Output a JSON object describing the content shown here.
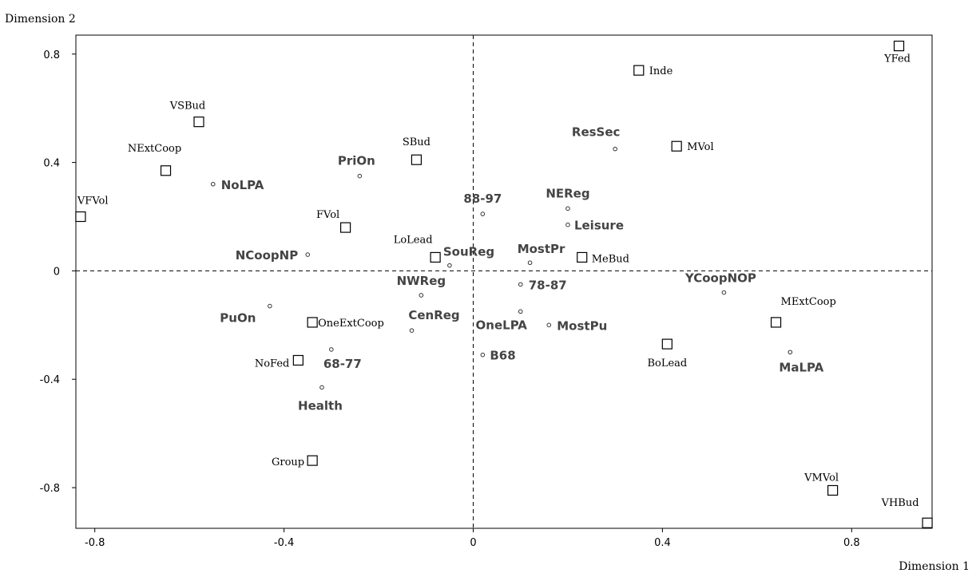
{
  "chart_data": {
    "type": "scatter",
    "xlabel": "Dimension 1",
    "ylabel": "Dimension 2",
    "xlim": [
      -0.84,
      0.97
    ],
    "ylim": [
      -0.95,
      0.87
    ],
    "xticks": [
      {
        "value": -0.8,
        "label": "-0.8"
      },
      {
        "value": -0.4,
        "label": "-0.4"
      },
      {
        "value": 0,
        "label": "0"
      },
      {
        "value": 0.4,
        "label": "0.4"
      },
      {
        "value": 0.8,
        "label": "0.8"
      }
    ],
    "yticks": [
      {
        "value": 0.8,
        "label": "0.8"
      },
      {
        "value": 0.4,
        "label": "0.4"
      },
      {
        "value": 0,
        "label": "0"
      },
      {
        "value": -0.4,
        "label": "-0.4"
      },
      {
        "value": -0.8,
        "label": "-0.8"
      }
    ],
    "reference_lines": {
      "x": 0,
      "y": 0,
      "style": "dashed"
    },
    "grid": false,
    "series": [
      {
        "marker": "square",
        "label_style": "serif",
        "points": [
          {
            "label": "YFed",
            "x": 0.9,
            "y": 0.83
          },
          {
            "label": "Inde",
            "x": 0.35,
            "y": 0.74
          },
          {
            "label": "MVol",
            "x": 0.43,
            "y": 0.46
          },
          {
            "label": "VSBud",
            "x": -0.58,
            "y": 0.55
          },
          {
            "label": "NExtCoop",
            "x": -0.65,
            "y": 0.37
          },
          {
            "label": "SBud",
            "x": -0.12,
            "y": 0.41
          },
          {
            "label": "VFVol",
            "x": -0.83,
            "y": 0.2
          },
          {
            "label": "FVol",
            "x": -0.27,
            "y": 0.16
          },
          {
            "label": "LoLead",
            "x": -0.08,
            "y": 0.05
          },
          {
            "label": "MeBud",
            "x": 0.23,
            "y": 0.05
          },
          {
            "label": "OneExtCoop",
            "x": -0.34,
            "y": -0.19
          },
          {
            "label": "NoFed",
            "x": -0.37,
            "y": -0.33
          },
          {
            "label": "MExtCoop",
            "x": 0.64,
            "y": -0.19
          },
          {
            "label": "BoLead",
            "x": 0.41,
            "y": -0.27
          },
          {
            "label": "Group",
            "x": -0.34,
            "y": -0.7
          },
          {
            "label": "VMVol",
            "x": 0.76,
            "y": -0.81
          },
          {
            "label": "VHBud",
            "x": 0.96,
            "y": -0.93
          }
        ]
      },
      {
        "marker": "circle",
        "label_style": "bold",
        "points": [
          {
            "label": "ResSec",
            "x": 0.3,
            "y": 0.45
          },
          {
            "label": "NoLPA",
            "x": -0.55,
            "y": 0.32
          },
          {
            "label": "PriOn",
            "x": -0.24,
            "y": 0.35
          },
          {
            "label": "88-97",
            "x": 0.02,
            "y": 0.21
          },
          {
            "label": "NEReg",
            "x": 0.2,
            "y": 0.23
          },
          {
            "label": "Leisure",
            "x": 0.2,
            "y": 0.17
          },
          {
            "label": "NCoopNP",
            "x": -0.35,
            "y": 0.06
          },
          {
            "label": "SouReg",
            "x": -0.05,
            "y": 0.02
          },
          {
            "label": "MostPr",
            "x": 0.12,
            "y": 0.03
          },
          {
            "label": "NWReg",
            "x": -0.11,
            "y": -0.09
          },
          {
            "label": "78-87",
            "x": 0.1,
            "y": -0.05
          },
          {
            "label": "YCoopNOP",
            "x": 0.53,
            "y": -0.08
          },
          {
            "label": "PuOn",
            "x": -0.43,
            "y": -0.13
          },
          {
            "label": "CenReg",
            "x": -0.13,
            "y": -0.22
          },
          {
            "label": "OneLPA",
            "x": 0.1,
            "y": -0.15
          },
          {
            "label": "MostPu",
            "x": 0.16,
            "y": -0.2
          },
          {
            "label": "B68",
            "x": 0.02,
            "y": -0.31
          },
          {
            "label": "68-77",
            "x": -0.3,
            "y": -0.29
          },
          {
            "label": "MaLPA",
            "x": 0.67,
            "y": -0.3
          },
          {
            "label": "Health",
            "x": -0.32,
            "y": -0.43
          }
        ]
      }
    ]
  }
}
